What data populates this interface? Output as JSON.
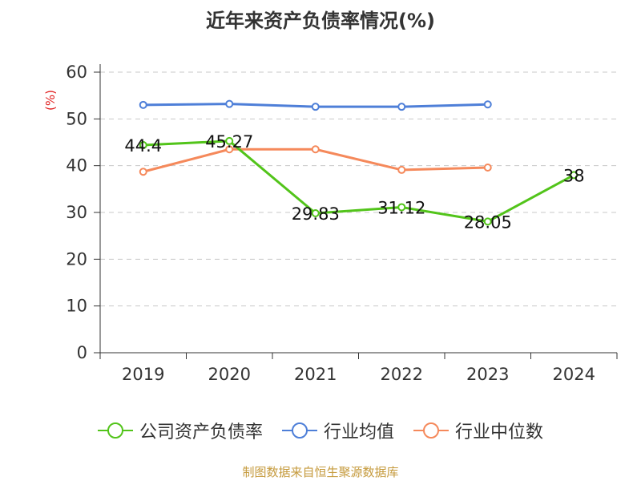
{
  "title": "近年来资产负债率情况(%)",
  "source": "制图数据来自恒生聚源数据库",
  "chart_data": {
    "type": "line",
    "title": "近年来资产负债率情况(%)",
    "ylabel": "(%)",
    "xlabel": "",
    "categories": [
      "2019",
      "2020",
      "2021",
      "2022",
      "2023",
      "2024"
    ],
    "ylim": [
      0,
      60
    ],
    "yticks": [
      0,
      10,
      20,
      30,
      40,
      50,
      60
    ],
    "grid": true,
    "legend_position": "bottom",
    "series": [
      {
        "name": "公司资产负债率",
        "color": "#52c41a",
        "values": [
          44.4,
          45.27,
          29.83,
          31.12,
          28.05,
          38
        ],
        "labels": [
          "44.4",
          "45.27",
          "29.83",
          "31.12",
          "28.05",
          "38"
        ]
      },
      {
        "name": "行业均值",
        "color": "#4e7fd8",
        "values": [
          53.0,
          53.2,
          52.6,
          52.6,
          53.1,
          null
        ]
      },
      {
        "name": "行业中位数",
        "color": "#f5895b",
        "values": [
          38.7,
          43.5,
          43.5,
          39.1,
          39.6,
          null
        ]
      }
    ]
  }
}
